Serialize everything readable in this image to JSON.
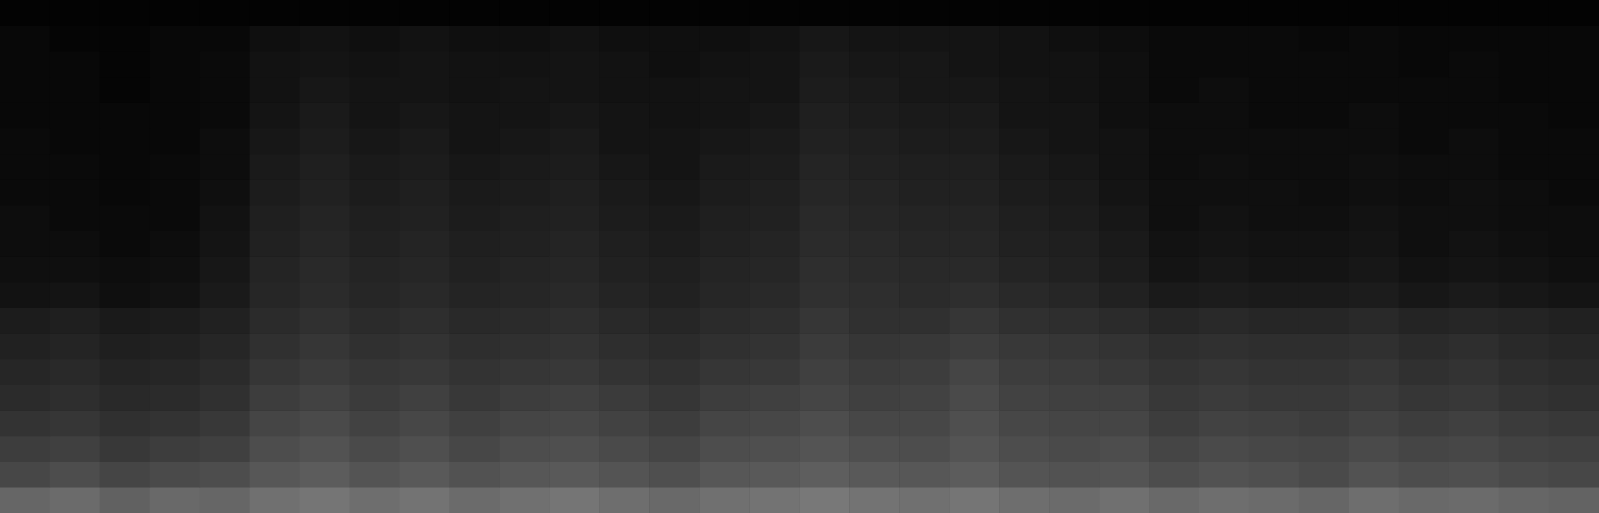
{
  "chart_data": {
    "type": "heatmap",
    "tick_labels": false,
    "color": [
      "#000000",
      "#ffffff"
    ],
    "zlim": [
      0,
      100
    ],
    "cells": [
      [
        40,
        42,
        38,
        41,
        40,
        44,
        46,
        43,
        45,
        42,
        44,
        46,
        43,
        41,
        44,
        45,
        47,
        45,
        44,
        46,
        43,
        42,
        44,
        41,
        43,
        42,
        40,
        43,
        41,
        42,
        40,
        39
      ],
      [
        28,
        30,
        27,
        29,
        30,
        34,
        36,
        33,
        35,
        32,
        34,
        35,
        33,
        31,
        34,
        35,
        37,
        35,
        34,
        36,
        33,
        32,
        33,
        30,
        32,
        31,
        29,
        32,
        30,
        31,
        29,
        28
      ],
      [
        24,
        25,
        22,
        24,
        25,
        30,
        32,
        29,
        31,
        28,
        30,
        31,
        29,
        27,
        30,
        31,
        33,
        31,
        30,
        33,
        30,
        29,
        30,
        27,
        29,
        28,
        27,
        29,
        27,
        28,
        26,
        25
      ],
      [
        20,
        21,
        19,
        20,
        22,
        27,
        29,
        26,
        28,
        25,
        27,
        28,
        26,
        24,
        27,
        28,
        30,
        28,
        28,
        31,
        28,
        27,
        27,
        24,
        26,
        25,
        24,
        26,
        24,
        25,
        23,
        22
      ],
      [
        17,
        18,
        16,
        17,
        19,
        24,
        26,
        23,
        25,
        22,
        24,
        25,
        23,
        21,
        24,
        25,
        27,
        25,
        26,
        29,
        26,
        25,
        25,
        22,
        23,
        22,
        22,
        23,
        21,
        22,
        20,
        19
      ],
      [
        15,
        16,
        14,
        15,
        17,
        21,
        23,
        21,
        22,
        20,
        21,
        22,
        20,
        19,
        21,
        22,
        25,
        23,
        24,
        27,
        24,
        23,
        22,
        20,
        21,
        20,
        20,
        21,
        19,
        20,
        18,
        17
      ],
      [
        13,
        14,
        12,
        13,
        15,
        19,
        21,
        19,
        20,
        18,
        19,
        20,
        18,
        17,
        19,
        20,
        23,
        21,
        22,
        24,
        22,
        21,
        20,
        18,
        19,
        18,
        18,
        19,
        17,
        18,
        16,
        15
      ],
      [
        11,
        12,
        10,
        11,
        13,
        17,
        19,
        17,
        18,
        16,
        17,
        18,
        16,
        15,
        17,
        18,
        21,
        19,
        19,
        21,
        19,
        18,
        17,
        15,
        16,
        15,
        15,
        16,
        14,
        15,
        14,
        13
      ],
      [
        7,
        8,
        6,
        7,
        10,
        15,
        17,
        15,
        16,
        14,
        15,
        16,
        14,
        13,
        15,
        16,
        19,
        18,
        17,
        18,
        16,
        15,
        13,
        10,
        11,
        10,
        10,
        11,
        9,
        10,
        9,
        8
      ],
      [
        6,
        6,
        5,
        6,
        9,
        14,
        16,
        14,
        15,
        13,
        14,
        15,
        13,
        12,
        14,
        15,
        18,
        17,
        16,
        16,
        14,
        13,
        11,
        8,
        9,
        8,
        8,
        9,
        7,
        8,
        7,
        6
      ],
      [
        5,
        5,
        4,
        5,
        8,
        13,
        15,
        13,
        14,
        12,
        13,
        14,
        12,
        11,
        13,
        14,
        17,
        16,
        15,
        15,
        13,
        12,
        10,
        7,
        8,
        7,
        7,
        8,
        6,
        7,
        6,
        5
      ],
      [
        5,
        4,
        4,
        4,
        7,
        12,
        14,
        12,
        13,
        11,
        12,
        13,
        11,
        10,
        12,
        13,
        16,
        15,
        14,
        14,
        12,
        11,
        9,
        6,
        7,
        6,
        6,
        7,
        6,
        6,
        5,
        5
      ],
      [
        4,
        4,
        3,
        4,
        6,
        11,
        13,
        11,
        12,
        10,
        11,
        12,
        10,
        9,
        11,
        12,
        15,
        14,
        13,
        13,
        11,
        10,
        8,
        6,
        6,
        6,
        5,
        6,
        5,
        6,
        5,
        4
      ],
      [
        4,
        4,
        3,
        4,
        5,
        10,
        12,
        10,
        11,
        9,
        10,
        11,
        9,
        8,
        10,
        11,
        14,
        13,
        12,
        12,
        10,
        9,
        7,
        5,
        6,
        5,
        5,
        6,
        5,
        5,
        4,
        4
      ],
      [
        4,
        3,
        3,
        3,
        5,
        9,
        11,
        9,
        10,
        8,
        9,
        10,
        8,
        8,
        9,
        10,
        13,
        12,
        11,
        11,
        9,
        8,
        7,
        5,
        5,
        5,
        5,
        5,
        4,
        5,
        4,
        4
      ],
      [
        3,
        3,
        3,
        3,
        4,
        8,
        10,
        8,
        9,
        8,
        8,
        9,
        8,
        7,
        8,
        9,
        12,
        11,
        10,
        10,
        8,
        8,
        6,
        5,
        5,
        4,
        4,
        5,
        4,
        4,
        4,
        3
      ],
      [
        3,
        3,
        2,
        3,
        4,
        7,
        9,
        8,
        8,
        7,
        8,
        8,
        7,
        7,
        8,
        8,
        11,
        10,
        9,
        9,
        8,
        7,
        6,
        4,
        5,
        4,
        4,
        4,
        4,
        4,
        3,
        3
      ],
      [
        3,
        3,
        2,
        3,
        4,
        7,
        8,
        7,
        8,
        7,
        7,
        8,
        7,
        6,
        7,
        8,
        10,
        9,
        9,
        8,
        7,
        7,
        6,
        4,
        4,
        4,
        4,
        4,
        3,
        4,
        3,
        3
      ],
      [
        3,
        2,
        2,
        3,
        3,
        6,
        7,
        6,
        7,
        6,
        6,
        7,
        6,
        6,
        6,
        7,
        9,
        8,
        8,
        8,
        7,
        6,
        5,
        4,
        4,
        4,
        3,
        4,
        3,
        3,
        3,
        3
      ],
      [
        1,
        1,
        1,
        1,
        1,
        1,
        1,
        1,
        1,
        1,
        1,
        1,
        1,
        1,
        1,
        1,
        1,
        1,
        1,
        1,
        1,
        1,
        1,
        1,
        1,
        1,
        1,
        1,
        1,
        1,
        1,
        1
      ]
    ]
  }
}
